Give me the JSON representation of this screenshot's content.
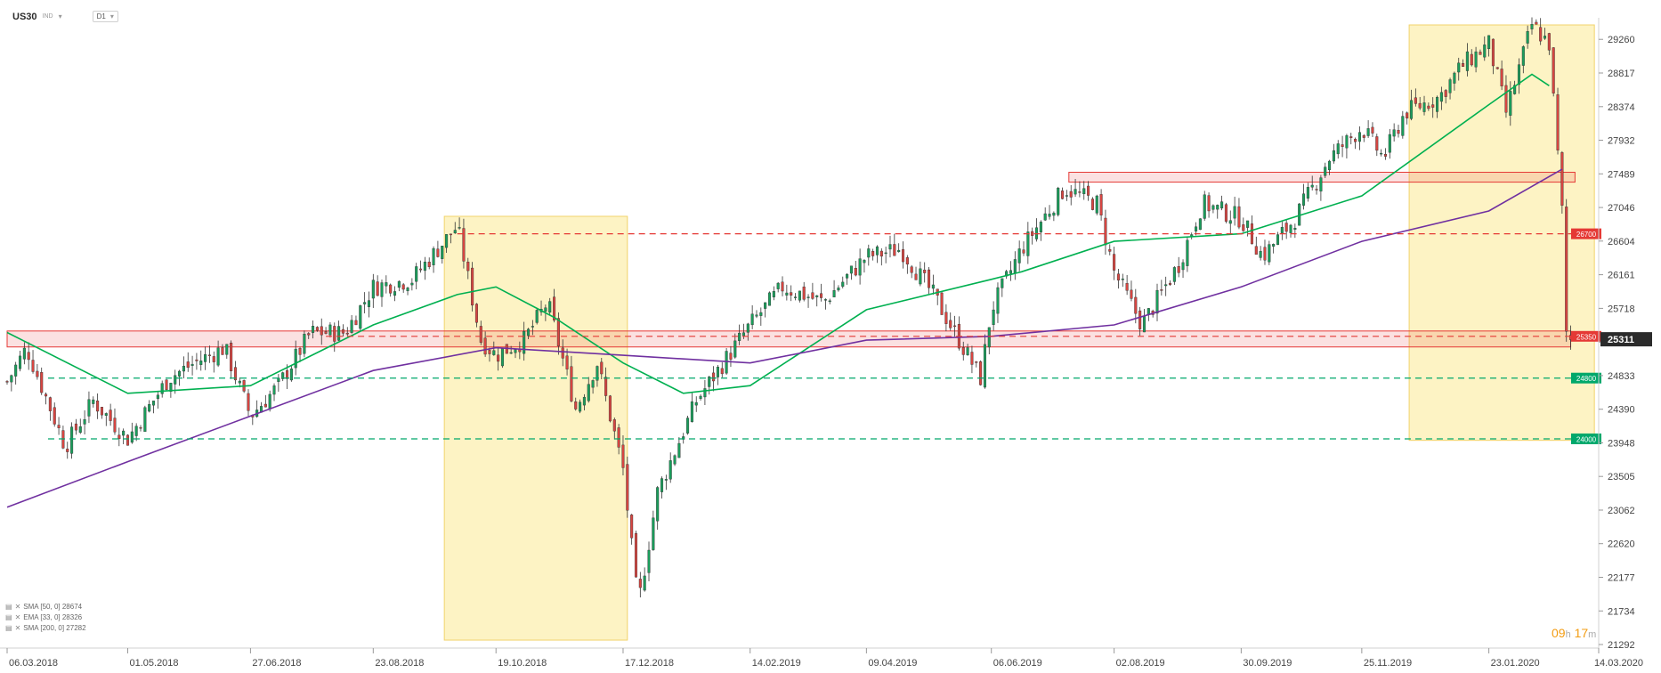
{
  "header": {
    "symbol": "US30",
    "instrument_type": "IND",
    "timeframe": "D1"
  },
  "legend": [
    {
      "label": "SMA [50, 0] 28674",
      "color": "#00b050"
    },
    {
      "label": "EMA [33, 0] 28326",
      "color": "#00b050"
    },
    {
      "label": "SMA [200, 0] 27282",
      "color": "#7030a0"
    }
  ],
  "timer": {
    "hours": "09",
    "h_unit": "h",
    "minutes": "17",
    "m_unit": "m"
  },
  "chart_data": {
    "type": "candlestick",
    "title": "",
    "x_ticks": [
      "06.03.2018",
      "01.05.2018",
      "27.06.2018",
      "23.08.2018",
      "19.10.2018",
      "17.12.2018",
      "14.02.2019",
      "09.04.2019",
      "06.06.2019",
      "02.08.2019",
      "30.09.2019",
      "25.11.2019",
      "23.01.2020",
      "14.03.2020"
    ],
    "y_ticks": [
      29260,
      28817,
      28374,
      27932,
      27489,
      27046,
      26604,
      26161,
      25718,
      25275,
      24833,
      24390,
      23948,
      23505,
      23062,
      22620,
      22177,
      21734,
      21292
    ],
    "ylim": [
      21292,
      29450
    ],
    "current_price": 25311,
    "price_path": [
      [
        "06.03.2018",
        24750
      ],
      [
        "15.03.2018",
        25200
      ],
      [
        "02.04.2018",
        23900
      ],
      [
        "15.04.2018",
        24500
      ],
      [
        "01.05.2018",
        24000
      ],
      [
        "20.05.2018",
        24800
      ],
      [
        "01.06.2018",
        25000
      ],
      [
        "15.06.2018",
        25200
      ],
      [
        "27.06.2018",
        24300
      ],
      [
        "10.07.2018",
        24700
      ],
      [
        "25.07.2018",
        25400
      ],
      [
        "10.08.2018",
        25400
      ],
      [
        "23.08.2018",
        26000
      ],
      [
        "10.09.2018",
        26100
      ],
      [
        "01.10.2018",
        26800
      ],
      [
        "12.10.2018",
        25300
      ],
      [
        "19.10.2018",
        25100
      ],
      [
        "01.11.2018",
        25300
      ],
      [
        "12.11.2018",
        25800
      ],
      [
        "25.11.2018",
        24400
      ],
      [
        "05.12.2018",
        25000
      ],
      [
        "17.12.2018",
        23600
      ],
      [
        "24.12.2018",
        21800
      ],
      [
        "02.01.2019",
        23300
      ],
      [
        "20.01.2019",
        24500
      ],
      [
        "14.02.2019",
        25500
      ],
      [
        "01.03.2019",
        26000
      ],
      [
        "20.03.2019",
        25800
      ],
      [
        "09.04.2019",
        26400
      ],
      [
        "25.04.2019",
        26500
      ],
      [
        "10.05.2019",
        25900
      ],
      [
        "01.06.2019",
        24800
      ],
      [
        "06.06.2019",
        25700
      ],
      [
        "20.06.2019",
        26500
      ],
      [
        "10.07.2019",
        27300
      ],
      [
        "25.07.2019",
        27100
      ],
      [
        "02.08.2019",
        26200
      ],
      [
        "15.08.2019",
        25500
      ],
      [
        "01.09.2019",
        26300
      ],
      [
        "12.09.2019",
        27100
      ],
      [
        "30.09.2019",
        26900
      ],
      [
        "10.10.2019",
        26400
      ],
      [
        "25.10.2019",
        26900
      ],
      [
        "10.11.2019",
        27700
      ],
      [
        "25.11.2019",
        28100
      ],
      [
        "05.12.2019",
        27700
      ],
      [
        "15.12.2019",
        28300
      ],
      [
        "31.12.2019",
        28500
      ],
      [
        "10.01.2020",
        28900
      ],
      [
        "23.01.2020",
        29200
      ],
      [
        "31.01.2020",
        28300
      ],
      [
        "12.02.2020",
        29450
      ],
      [
        "20.02.2020",
        29200
      ],
      [
        "26.02.2020",
        27000
      ],
      [
        "28.02.2020",
        25400
      ],
      [
        "01.03.2020",
        25311
      ]
    ],
    "series": [
      {
        "name": "SMA [50, 0]",
        "color": "#00b050",
        "points": [
          [
            "06.03.2018",
            25400
          ],
          [
            "01.05.2018",
            24600
          ],
          [
            "27.06.2018",
            24700
          ],
          [
            "23.08.2018",
            25500
          ],
          [
            "01.10.2018",
            25900
          ],
          [
            "19.10.2018",
            26000
          ],
          [
            "15.11.2018",
            25600
          ],
          [
            "17.12.2018",
            25000
          ],
          [
            "14.01.2019",
            24600
          ],
          [
            "14.02.2019",
            24700
          ],
          [
            "09.04.2019",
            25700
          ],
          [
            "06.06.2019",
            26100
          ],
          [
            "20.06.2019",
            26200
          ],
          [
            "02.08.2019",
            26600
          ],
          [
            "30.09.2019",
            26700
          ],
          [
            "25.11.2019",
            27200
          ],
          [
            "23.01.2020",
            28400
          ],
          [
            "12.02.2020",
            28800
          ],
          [
            "20.02.2020",
            28650
          ]
        ]
      },
      {
        "name": "SMA [200, 0]",
        "color": "#7030a0",
        "points": [
          [
            "06.03.2018",
            23100
          ],
          [
            "01.05.2018",
            23700
          ],
          [
            "27.06.2018",
            24300
          ],
          [
            "23.08.2018",
            24900
          ],
          [
            "19.10.2018",
            25200
          ],
          [
            "17.12.2018",
            25100
          ],
          [
            "14.02.2019",
            25000
          ],
          [
            "09.04.2019",
            25300
          ],
          [
            "06.06.2019",
            25350
          ],
          [
            "02.08.2019",
            25500
          ],
          [
            "30.09.2019",
            26000
          ],
          [
            "25.11.2019",
            26600
          ],
          [
            "23.01.2020",
            27000
          ],
          [
            "26.02.2020",
            27550
          ]
        ]
      }
    ],
    "support_resistance": [
      {
        "price": 26700,
        "label": "26700",
        "color": "#e53935",
        "style": "dashed"
      },
      {
        "price": 25350,
        "label": "25350",
        "color": "#e53935",
        "style": "dashed"
      },
      {
        "price": 24800,
        "label": "24800",
        "color": "#00a86b",
        "style": "dashed"
      },
      {
        "price": 24000,
        "label": "24000",
        "color": "#00a86b",
        "style": "dashed"
      }
    ],
    "zones": [
      {
        "kind": "highlight",
        "from": "25.09.2018",
        "to": "19.12.2018",
        "low": 21350,
        "high": 26930,
        "color": "#fdf3c4"
      },
      {
        "kind": "highlight",
        "from": "17.12.2019",
        "to": "12.03.2020",
        "low": 23980,
        "high": 29450,
        "color": "#fdf3c4"
      },
      {
        "kind": "resistance",
        "from": "06.03.2018",
        "to": "01.03.2020",
        "low": 25210,
        "high": 25420,
        "color": "#e53935"
      },
      {
        "kind": "resistance",
        "from": "12.07.2019",
        "to": "03.03.2020",
        "low": 27380,
        "high": 27510,
        "color": "#e53935"
      }
    ],
    "colors": {
      "bullish": "#1a9d5b",
      "bearish": "#d64541",
      "wick": "#333333",
      "price_badge": "#2b2b2b"
    }
  }
}
